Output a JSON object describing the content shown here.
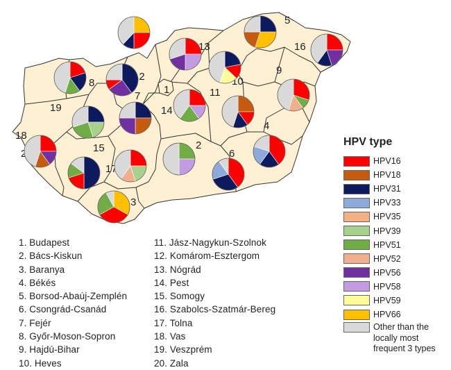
{
  "legend": {
    "title": "HPV type",
    "items": [
      {
        "label": "HPV16",
        "color": "#ff0000"
      },
      {
        "label": "HPV18",
        "color": "#c55a11"
      },
      {
        "label": "HPV31",
        "color": "#0d1a5e"
      },
      {
        "label": "HPV33",
        "color": "#8eaadb"
      },
      {
        "label": "HPV35",
        "color": "#f4b183"
      },
      {
        "label": "HPV39",
        "color": "#a9d18e"
      },
      {
        "label": "HPV51",
        "color": "#70ad47"
      },
      {
        "label": "HPV52",
        "color": "#f0b090"
      },
      {
        "label": "HPV56",
        "color": "#7030a0"
      },
      {
        "label": "HPV58",
        "color": "#c39be0"
      },
      {
        "label": "HPV59",
        "color": "#ffff99"
      },
      {
        "label": "HPV66",
        "color": "#ffc000"
      }
    ],
    "other": {
      "label": "Other than the locally most frequent 3 types",
      "color": "#d9d9d9"
    }
  },
  "map": {
    "fill_color": "#fdf0d3",
    "border_color": "#333333",
    "county_numbers": [
      "1",
      "2",
      "3",
      "4",
      "5",
      "6",
      "7",
      "8",
      "9",
      "10",
      "11",
      "12",
      "13",
      "14",
      "15",
      "16",
      "17",
      "18",
      "19",
      "20"
    ]
  },
  "counties_column_1": [
    "1. Budapest",
    "2. Bács-Kiskun",
    "3. Baranya",
    "4. Békés",
    "5. Borsod-Abaúj-Zemplén",
    "6. Csongrád-Csanád",
    "7. Fejér",
    "8. Győr-Moson-Sopron",
    "9. Hajdú-Bihar",
    "10. Heves"
  ],
  "counties_column_2": [
    "11.  Jász-Nagykun-Szolnok",
    "12. Komárom-Esztergom",
    "13. Nógrád",
    "14. Pest",
    "15. Somogy",
    "16. Szabolcs-Szatmár-Bereg",
    "17. Tolna",
    "18. Vas",
    "19. Veszprém",
    "20. Zala"
  ],
  "pies": [
    {
      "county": "1",
      "slices": [
        [
          "HPV66",
          25
        ],
        [
          "HPV16",
          25
        ],
        [
          "HPV31",
          12
        ],
        [
          "Other",
          38
        ]
      ]
    },
    {
      "county": "2",
      "slices": [
        [
          "HPV51",
          25
        ],
        [
          "HPV58",
          25
        ],
        [
          "Other",
          50
        ]
      ]
    },
    {
      "county": "3",
      "slices": [
        [
          "HPV66",
          33
        ],
        [
          "HPV16",
          34
        ],
        [
          "HPV51",
          25
        ],
        [
          "Other",
          8
        ]
      ]
    },
    {
      "county": "4",
      "slices": [
        [
          "HPV16",
          40
        ],
        [
          "HPV31",
          20
        ],
        [
          "HPV33",
          20
        ],
        [
          "Other",
          20
        ]
      ]
    },
    {
      "county": "5",
      "slices": [
        [
          "HPV31",
          25
        ],
        [
          "HPV66",
          30
        ],
        [
          "HPV18",
          20
        ],
        [
          "Other",
          25
        ]
      ]
    },
    {
      "county": "6",
      "slices": [
        [
          "HPV16",
          40
        ],
        [
          "HPV31",
          30
        ],
        [
          "HPV33",
          20
        ],
        [
          "Other",
          10
        ]
      ]
    },
    {
      "county": "7",
      "slices": [
        [
          "HPV31",
          25
        ],
        [
          "HPV18",
          25
        ],
        [
          "HPV56",
          25
        ],
        [
          "Other",
          25
        ]
      ]
    },
    {
      "county": "8",
      "slices": [
        [
          "HPV16",
          20
        ],
        [
          "HPV31",
          20
        ],
        [
          "HPV51",
          15
        ],
        [
          "Other",
          45
        ]
      ]
    },
    {
      "county": "9",
      "slices": [
        [
          "HPV16",
          30
        ],
        [
          "HPV51",
          10
        ],
        [
          "HPV52",
          15
        ],
        [
          "Other",
          45
        ]
      ]
    },
    {
      "county": "10",
      "slices": [
        [
          "HPV31",
          22
        ],
        [
          "HPV16",
          15
        ],
        [
          "HPV59",
          18
        ],
        [
          "Other",
          45
        ]
      ]
    },
    {
      "county": "11",
      "slices": [
        [
          "HPV18",
          25
        ],
        [
          "HPV16",
          15
        ],
        [
          "HPV31",
          15
        ],
        [
          "Other",
          45
        ]
      ]
    },
    {
      "county": "12",
      "slices": [
        [
          "HPV31",
          40
        ],
        [
          "HPV56",
          25
        ],
        [
          "HPV16",
          10
        ],
        [
          "Other",
          25
        ]
      ]
    },
    {
      "county": "13",
      "slices": [
        [
          "HPV16",
          25
        ],
        [
          "HPV58",
          25
        ],
        [
          "HPV56",
          20
        ],
        [
          "Other",
          30
        ]
      ]
    },
    {
      "county": "14",
      "slices": [
        [
          "HPV16",
          25
        ],
        [
          "HPV58",
          15
        ],
        [
          "HPV51",
          20
        ],
        [
          "Other",
          40
        ]
      ]
    },
    {
      "county": "15",
      "slices": [
        [
          "HPV31",
          50
        ],
        [
          "HPV16",
          20
        ],
        [
          "HPV51",
          15
        ],
        [
          "Other",
          15
        ]
      ]
    },
    {
      "county": "16",
      "slices": [
        [
          "HPV16",
          25
        ],
        [
          "HPV56",
          20
        ],
        [
          "HPV31",
          15
        ],
        [
          "Other",
          40
        ]
      ]
    },
    {
      "county": "17",
      "slices": [
        [
          "HPV16",
          25
        ],
        [
          "HPV39",
          20
        ],
        [
          "HPV52",
          15
        ],
        [
          "Other",
          40
        ]
      ]
    },
    {
      "county": "18",
      "slices": []
    },
    {
      "county": "19",
      "slices": [
        [
          "HPV31",
          25
        ],
        [
          "HPV39",
          20
        ],
        [
          "HPV51",
          25
        ],
        [
          "Other",
          30
        ]
      ]
    },
    {
      "county": "20",
      "slices": [
        [
          "HPV16",
          25
        ],
        [
          "HPV56",
          15
        ],
        [
          "HPV18",
          15
        ],
        [
          "Other",
          45
        ]
      ]
    }
  ]
}
